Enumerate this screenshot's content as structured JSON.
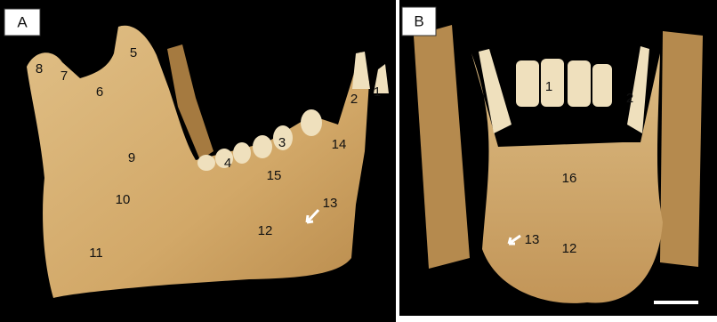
{
  "panels": [
    {
      "label": "A",
      "markers": [
        "8",
        "7",
        "6",
        "5",
        "9",
        "10",
        "11",
        "4",
        "3",
        "15",
        "14",
        "2",
        "1",
        "13",
        "12"
      ]
    },
    {
      "label": "B",
      "markers": [
        "1",
        "2",
        "16",
        "13",
        "12"
      ]
    }
  ]
}
